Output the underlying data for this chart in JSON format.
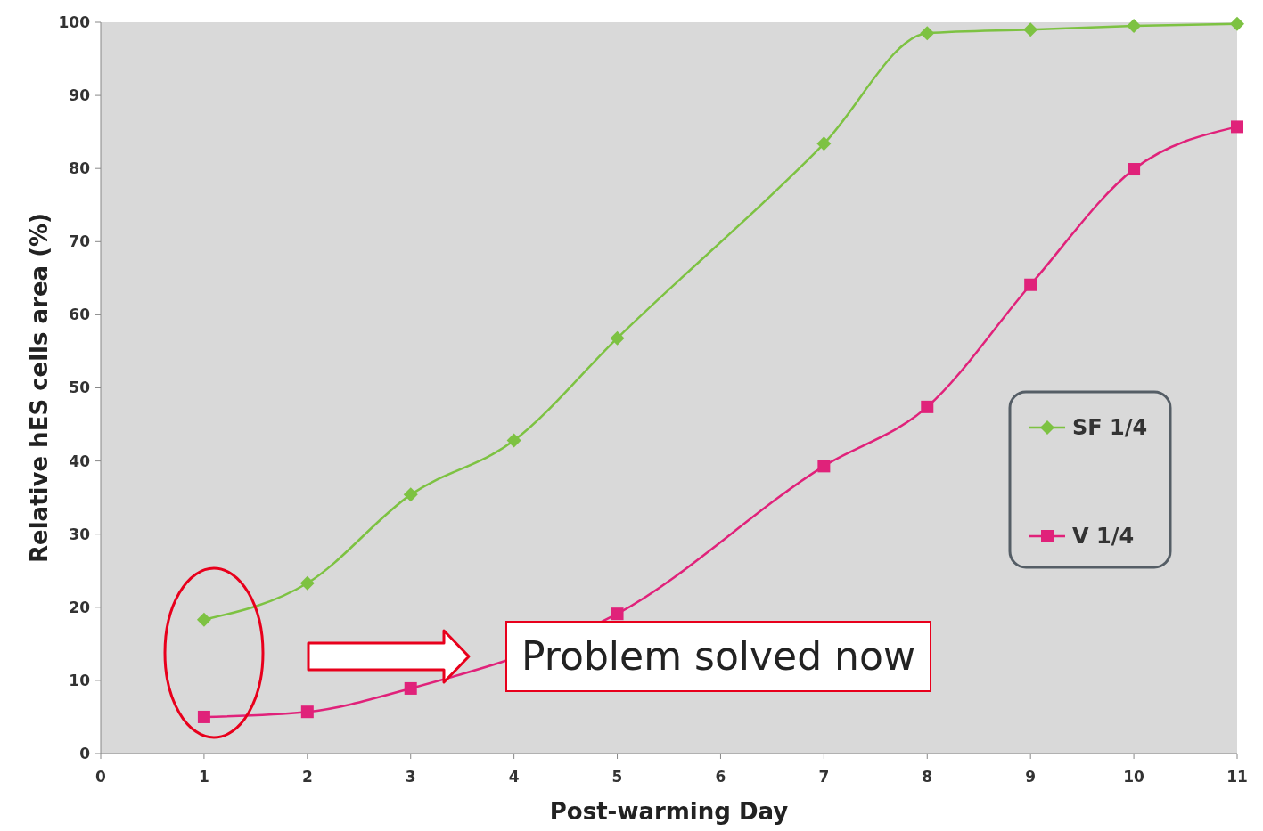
{
  "chart_data": {
    "type": "line",
    "xlabel": "Post-warming Day",
    "ylabel": "Relative hES cells area (%)",
    "xlim": [
      0,
      11
    ],
    "xticks": [
      0,
      1,
      2,
      3,
      4,
      5,
      6,
      7,
      8,
      9,
      10,
      11
    ],
    "ylim": [
      0,
      100
    ],
    "yticks": [
      0,
      10,
      20,
      30,
      40,
      50,
      60,
      70,
      80,
      90,
      100
    ],
    "legend": "right",
    "grid": false,
    "annotations": [
      "Problem solved now"
    ],
    "series": [
      {
        "name": "SF 1/4",
        "color": "#7dc242",
        "marker": "diamond",
        "x": [
          1,
          2,
          3,
          4,
          5,
          7,
          8,
          9,
          10,
          11
        ],
        "values": [
          18.3,
          23.3,
          35.4,
          42.8,
          56.8,
          83.4,
          98.5,
          99.0,
          99.5,
          99.8
        ]
      },
      {
        "name": "V 1/4",
        "color": "#e0227a",
        "marker": "square",
        "x": [
          1,
          2,
          3,
          4,
          5,
          7,
          8,
          9,
          10,
          11
        ],
        "values": [
          5.0,
          5.7,
          8.9,
          null,
          19.1,
          39.3,
          47.4,
          64.1,
          79.9,
          85.7
        ]
      }
    ]
  }
}
